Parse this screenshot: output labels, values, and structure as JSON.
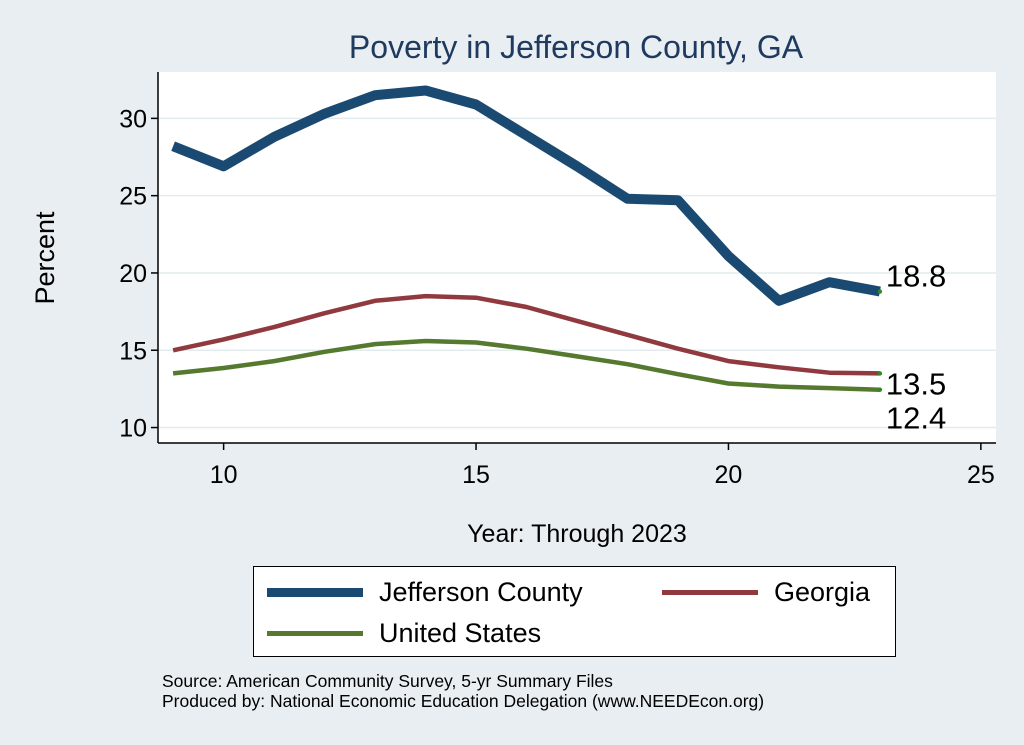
{
  "chart_data": {
    "type": "line",
    "title": "Poverty in Jefferson County, GA",
    "xlabel": "Year: Through 2023",
    "ylabel": "Percent",
    "xlim": [
      8.7,
      25.3
    ],
    "ylim": [
      9.0,
      33.0
    ],
    "xticks": [
      10,
      15,
      20,
      25
    ],
    "yticks": [
      10,
      15,
      20,
      25,
      30
    ],
    "grid": true,
    "legend_position": "bottom",
    "x": [
      9,
      10,
      11,
      12,
      13,
      14,
      15,
      16,
      17,
      18,
      19,
      20,
      21,
      22,
      23
    ],
    "series": [
      {
        "name": "Jefferson County",
        "color": "#1a4a72",
        "width": 10,
        "values": [
          28.2,
          26.9,
          28.8,
          30.3,
          31.5,
          31.8,
          30.9,
          28.9,
          26.9,
          24.8,
          24.7,
          21.1,
          18.2,
          19.4,
          18.8
        ],
        "end_label": "18.8"
      },
      {
        "name": "Georgia",
        "color": "#903a3f",
        "width": 4.5,
        "values": [
          15.0,
          15.7,
          16.5,
          17.4,
          18.2,
          18.5,
          18.4,
          17.8,
          16.9,
          16.0,
          15.1,
          14.3,
          13.9,
          13.55,
          13.5
        ],
        "end_label": "13.5"
      },
      {
        "name": "United States",
        "color": "#55792e",
        "width": 4.5,
        "values": [
          13.5,
          13.85,
          14.3,
          14.9,
          15.4,
          15.6,
          15.5,
          15.1,
          14.6,
          14.1,
          13.45,
          12.85,
          12.65,
          12.55,
          12.45
        ],
        "end_label": "12.4"
      }
    ]
  },
  "notes": {
    "source": "Source: American Community Survey, 5-yr Summary Files",
    "produced_by": "Produced by: National Economic Education Delegation (www.NEEDEcon.org)"
  },
  "colors": {
    "background": "#e9eef2",
    "plot_background": "#ffffff",
    "grid": "#e2ebee",
    "title": "#1f3a5f",
    "end_dot": "#2e8b20"
  }
}
